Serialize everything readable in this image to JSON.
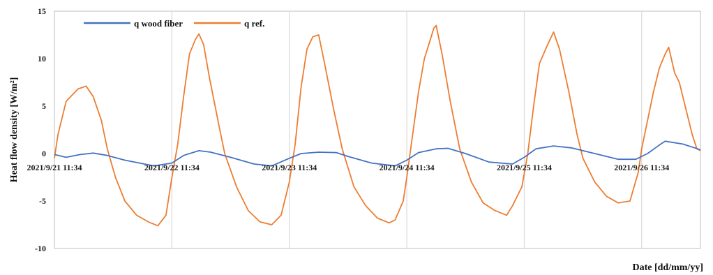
{
  "chart_data": {
    "type": "line",
    "title": "",
    "xlabel": "Date [dd/mm/yy]",
    "ylabel": "Heat flow density [W/m²]",
    "ylim": [
      -10,
      15
    ],
    "yticks": [
      15,
      10,
      5,
      0,
      -5,
      -10
    ],
    "xlim": [
      0,
      5.5
    ],
    "x_tick_positions": [
      0,
      1,
      2,
      3,
      4,
      5
    ],
    "x_tick_labels": [
      "2021/9/21 11:34",
      "2021/9/22 11:34",
      "2021/9/23 11:34",
      "2021/9/24 11:34",
      "2021/9/25 11:34",
      "2021/9/26 11:34"
    ],
    "grid": "vertical",
    "legend_position": "top-left",
    "series": [
      {
        "name": "q wood fiber",
        "color": "#4472C4",
        "points": [
          [
            0,
            -0.1
          ],
          [
            0.1,
            -0.4
          ],
          [
            0.22,
            -0.1
          ],
          [
            0.33,
            0.05
          ],
          [
            0.45,
            -0.2
          ],
          [
            0.6,
            -0.7
          ],
          [
            0.85,
            -1.3
          ],
          [
            1.0,
            -1.0
          ],
          [
            1.1,
            -0.2
          ],
          [
            1.23,
            0.3
          ],
          [
            1.33,
            0.15
          ],
          [
            1.5,
            -0.4
          ],
          [
            1.7,
            -1.1
          ],
          [
            1.85,
            -1.3
          ],
          [
            2.0,
            -0.5
          ],
          [
            2.1,
            0.0
          ],
          [
            2.25,
            0.15
          ],
          [
            2.4,
            0.1
          ],
          [
            2.5,
            -0.3
          ],
          [
            2.7,
            -1.0
          ],
          [
            2.9,
            -1.3
          ],
          [
            3.0,
            -0.7
          ],
          [
            3.1,
            0.1
          ],
          [
            3.25,
            0.5
          ],
          [
            3.35,
            0.55
          ],
          [
            3.5,
            0.0
          ],
          [
            3.7,
            -0.9
          ],
          [
            3.9,
            -1.1
          ],
          [
            4.0,
            -0.4
          ],
          [
            4.1,
            0.5
          ],
          [
            4.25,
            0.8
          ],
          [
            4.4,
            0.6
          ],
          [
            4.6,
            0.0
          ],
          [
            4.8,
            -0.6
          ],
          [
            4.95,
            -0.6
          ],
          [
            5.05,
            0.0
          ],
          [
            5.15,
            0.9
          ],
          [
            5.2,
            1.3
          ],
          [
            5.35,
            1.0
          ],
          [
            5.45,
            0.6
          ],
          [
            5.5,
            0.4
          ]
        ]
      },
      {
        "name": "q ref.",
        "color": "#ED7D31",
        "points": [
          [
            0,
            -0.5
          ],
          [
            0.03,
            2.0
          ],
          [
            0.1,
            5.5
          ],
          [
            0.2,
            6.8
          ],
          [
            0.27,
            7.1
          ],
          [
            0.33,
            6.0
          ],
          [
            0.4,
            3.5
          ],
          [
            0.45,
            0.5
          ],
          [
            0.52,
            -2.5
          ],
          [
            0.6,
            -5.0
          ],
          [
            0.7,
            -6.5
          ],
          [
            0.8,
            -7.2
          ],
          [
            0.88,
            -7.6
          ],
          [
            0.95,
            -6.5
          ],
          [
            1.0,
            -2.5
          ],
          [
            1.05,
            1.0
          ],
          [
            1.1,
            6.0
          ],
          [
            1.15,
            10.5
          ],
          [
            1.2,
            12.0
          ],
          [
            1.23,
            12.6
          ],
          [
            1.27,
            11.5
          ],
          [
            1.32,
            8.0
          ],
          [
            1.4,
            3.0
          ],
          [
            1.45,
            0.0
          ],
          [
            1.55,
            -3.5
          ],
          [
            1.65,
            -6.0
          ],
          [
            1.75,
            -7.2
          ],
          [
            1.85,
            -7.5
          ],
          [
            1.93,
            -6.5
          ],
          [
            2.0,
            -3.0
          ],
          [
            2.05,
            1.0
          ],
          [
            2.1,
            7.0
          ],
          [
            2.15,
            11.0
          ],
          [
            2.2,
            12.3
          ],
          [
            2.25,
            12.5
          ],
          [
            2.3,
            9.5
          ],
          [
            2.38,
            4.5
          ],
          [
            2.45,
            0.5
          ],
          [
            2.55,
            -3.5
          ],
          [
            2.65,
            -5.5
          ],
          [
            2.75,
            -6.8
          ],
          [
            2.85,
            -7.3
          ],
          [
            2.9,
            -7.0
          ],
          [
            2.97,
            -5.0
          ],
          [
            3.0,
            -2.5
          ],
          [
            3.05,
            2.0
          ],
          [
            3.1,
            6.5
          ],
          [
            3.15,
            10.0
          ],
          [
            3.2,
            12.0
          ],
          [
            3.23,
            13.2
          ],
          [
            3.25,
            13.5
          ],
          [
            3.3,
            10.5
          ],
          [
            3.37,
            5.5
          ],
          [
            3.45,
            0.5
          ],
          [
            3.55,
            -3.0
          ],
          [
            3.65,
            -5.2
          ],
          [
            3.75,
            -6.0
          ],
          [
            3.85,
            -6.5
          ],
          [
            3.9,
            -5.5
          ],
          [
            3.98,
            -3.5
          ],
          [
            4.03,
            0.0
          ],
          [
            4.08,
            5.0
          ],
          [
            4.13,
            9.5
          ],
          [
            4.2,
            11.5
          ],
          [
            4.25,
            12.8
          ],
          [
            4.3,
            11.0
          ],
          [
            4.38,
            6.5
          ],
          [
            4.45,
            2.0
          ],
          [
            4.5,
            -0.5
          ],
          [
            4.6,
            -3.0
          ],
          [
            4.7,
            -4.5
          ],
          [
            4.8,
            -5.2
          ],
          [
            4.9,
            -5.0
          ],
          [
            4.97,
            -2.0
          ],
          [
            5.0,
            0.5
          ],
          [
            5.05,
            3.5
          ],
          [
            5.1,
            6.5
          ],
          [
            5.15,
            9.0
          ],
          [
            5.2,
            10.5
          ],
          [
            5.23,
            11.2
          ],
          [
            5.28,
            8.5
          ],
          [
            5.32,
            7.5
          ],
          [
            5.37,
            5.0
          ],
          [
            5.43,
            2.0
          ],
          [
            5.47,
            0.5
          ],
          [
            5.5,
            0.3
          ]
        ]
      }
    ]
  }
}
